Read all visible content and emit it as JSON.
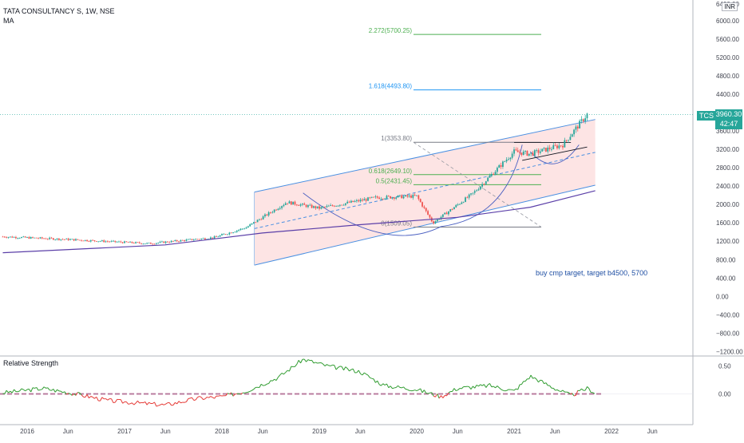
{
  "header": {
    "title": "TATA CONSULTANCY S, 1W, NSE",
    "indicator": "MA",
    "currency": "INR"
  },
  "price_tag": {
    "symbol": "TCS",
    "price": "3960.30",
    "countdown": "42:47"
  },
  "note": "buy cmp target, target b4500, 5700",
  "colors": {
    "up": "#26a69a",
    "down": "#ef5350",
    "channel_fill": "#fde4e4",
    "channel_line": "#4a90e2",
    "ma": "#5b3fa8",
    "fib_top": "#4caf50",
    "fib_1618": "#2196f3",
    "fib_1": "#787b86",
    "fib_0618": "#4caf50",
    "fib_05": "#4caf50",
    "fib_0": "#787b86",
    "rs_pos": "#2e9b2e",
    "rs_neg": "#e53935"
  },
  "chart_data": [
    {
      "type": "candlestick",
      "title": "TATA CONSULTANCY S, 1W, NSE",
      "x_ticks": [
        "2016",
        "Jun",
        "2017",
        "Jun",
        "2018",
        "Jun",
        "2019",
        "Jun",
        "2020",
        "Jun",
        "2021",
        "Jun",
        "2022",
        "Jun"
      ],
      "y_ticks": [
        "6000.00",
        "5600.00",
        "5200.00",
        "4800.00",
        "4400.00",
        "4000.00",
        "3600.00",
        "3200.00",
        "2800.00",
        "2400.00",
        "2000.00",
        "1600.00",
        "1200.00",
        "800.00",
        "400.00",
        "0.00",
        "−400.00",
        "−800.00",
        "−1200.00"
      ],
      "y_top_label": "6400.00",
      "ylim": [
        -1280,
        6450
      ],
      "x_range": [
        "2015-10",
        "2022-10"
      ],
      "price_series_weekly_close_approx": [
        {
          "date": "2015-10",
          "value": 1300
        },
        {
          "date": "2016-06",
          "value": 1240
        },
        {
          "date": "2017-04",
          "value": 1150
        },
        {
          "date": "2017-12",
          "value": 1280
        },
        {
          "date": "2018-04",
          "value": 1500
        },
        {
          "date": "2018-09",
          "value": 2050
        },
        {
          "date": "2019-01",
          "value": 1920
        },
        {
          "date": "2019-08",
          "value": 2150
        },
        {
          "date": "2020-01",
          "value": 2180
        },
        {
          "date": "2020-03",
          "value": 1600
        },
        {
          "date": "2020-08",
          "value": 2250
        },
        {
          "date": "2021-01",
          "value": 3150
        },
        {
          "date": "2021-03",
          "value": 3100
        },
        {
          "date": "2021-07",
          "value": 3300
        },
        {
          "date": "2021-10",
          "value": 3960
        }
      ],
      "moving_average": [
        {
          "date": "2015-10",
          "value": 950
        },
        {
          "date": "2017-06",
          "value": 1120
        },
        {
          "date": "2018-06",
          "value": 1380
        },
        {
          "date": "2019-06",
          "value": 1560
        },
        {
          "date": "2020-06",
          "value": 1720
        },
        {
          "date": "2021-03",
          "value": 1940
        },
        {
          "date": "2021-11",
          "value": 2300
        }
      ],
      "fib_levels": [
        {
          "label": "2.272(5700.25)",
          "value": 5700.25
        },
        {
          "label": "1.618(4493.80)",
          "value": 4493.8
        },
        {
          "label": "1(3353.80)",
          "value": 3353.8
        },
        {
          "label": "0.618(2649.10)",
          "value": 2649.1
        },
        {
          "label": "0.5(2431.45)",
          "value": 2431.45
        },
        {
          "label": "0(1509.05)",
          "value": 1509.05
        }
      ],
      "channel": {
        "upper": [
          {
            "date": "2018-05",
            "value": 2270
          },
          {
            "date": "2021-11",
            "value": 3850
          }
        ],
        "lower": [
          {
            "date": "2018-05",
            "value": 680
          },
          {
            "date": "2021-11",
            "value": 2420
          }
        ]
      },
      "last_price": 3960.3
    },
    {
      "type": "line",
      "title": "Relative Strength",
      "y_ticks": [
        "0.50",
        "0.00"
      ],
      "ylim": [
        -0.35,
        0.65
      ],
      "series": [
        {
          "values": [
            {
              "date": "2015-10",
              "value": 0.02
            },
            {
              "date": "2016-03",
              "value": 0.1
            },
            {
              "date": "2016-07",
              "value": 0.0
            },
            {
              "date": "2016-11",
              "value": -0.12
            },
            {
              "date": "2017-06",
              "value": -0.2
            },
            {
              "date": "2017-10",
              "value": -0.08
            },
            {
              "date": "2018-01",
              "value": -0.05
            },
            {
              "date": "2018-04",
              "value": 0.05
            },
            {
              "date": "2018-08",
              "value": 0.3
            },
            {
              "date": "2018-11",
              "value": 0.62
            },
            {
              "date": "2019-02",
              "value": 0.5
            },
            {
              "date": "2019-06",
              "value": 0.4
            },
            {
              "date": "2019-09",
              "value": 0.15
            },
            {
              "date": "2020-01",
              "value": 0.08
            },
            {
              "date": "2020-04",
              "value": -0.05
            },
            {
              "date": "2020-06",
              "value": 0.1
            },
            {
              "date": "2020-10",
              "value": 0.15
            },
            {
              "date": "2021-01",
              "value": 0.05
            },
            {
              "date": "2021-03",
              "value": 0.32
            },
            {
              "date": "2021-06",
              "value": 0.1
            },
            {
              "date": "2021-08",
              "value": -0.03
            },
            {
              "date": "2021-10",
              "value": 0.1
            },
            {
              "date": "2021-11",
              "value": 0.02
            }
          ]
        }
      ]
    }
  ]
}
